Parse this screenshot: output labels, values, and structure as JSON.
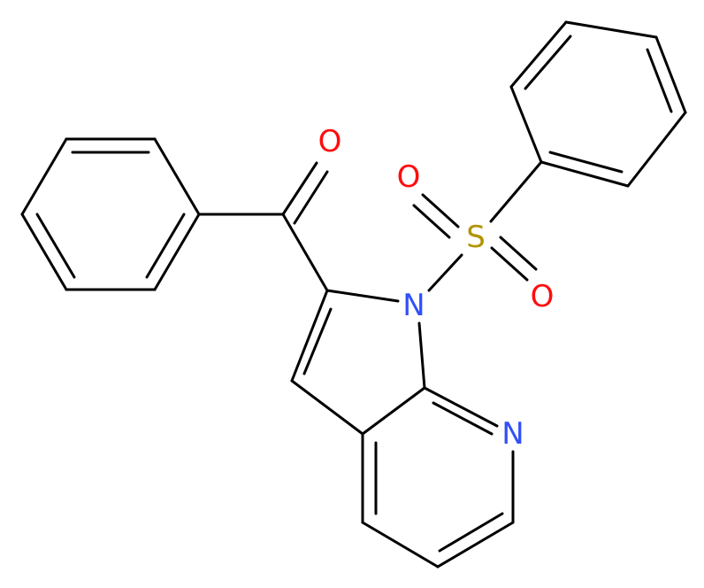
{
  "atoms": [
    {
      "label": "O",
      "element": "oxygen"
    },
    {
      "label": "O",
      "element": "oxygen"
    },
    {
      "label": "S",
      "element": "sulfur"
    },
    {
      "label": "O",
      "element": "oxygen"
    },
    {
      "label": "N",
      "element": "nitrogen"
    },
    {
      "label": "N",
      "element": "nitrogen"
    }
  ]
}
